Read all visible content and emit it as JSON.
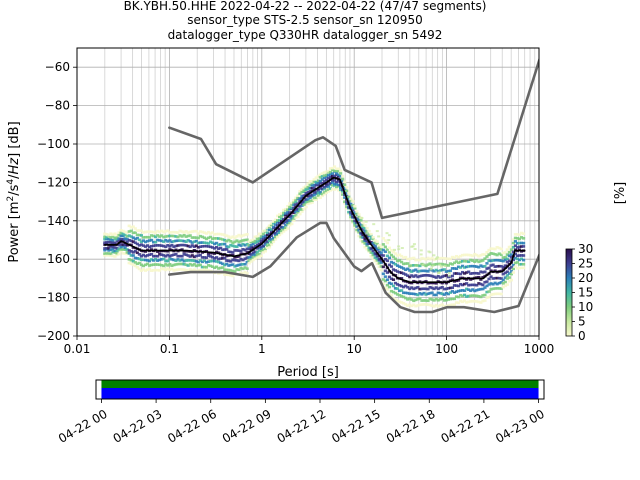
{
  "title_lines": [
    "BK.YBH.50.HHE   2022-04-22 -- 2022-04-22  (47/47 segments)",
    "sensor_type STS-2.5 sensor_sn 120950",
    "datalogger_type Q330HR datalogger_sn 5492"
  ],
  "chart_data": [
    {
      "type": "line",
      "title": "BK.YBH.50.HHE   2022-04-22 -- 2022-04-22  (47/47 segments)",
      "xlabel": "Period [s]",
      "ylabel": "Power [m²/s⁴/Hz] [dB]",
      "xscale": "log",
      "xlim": [
        0.01,
        1000
      ],
      "ylim": [
        -200,
        -50
      ],
      "x_tick_labels": [
        "0.01",
        "0.1",
        "1",
        "10",
        "100",
        "1000"
      ],
      "y_ticks": [
        -200,
        -180,
        -160,
        -140,
        -120,
        -100,
        -80,
        -60
      ],
      "y_tick_labels": [
        "−200",
        "−180",
        "−160",
        "−140",
        "−120",
        "−100",
        "−80",
        "−60"
      ],
      "grid": true,
      "series": [
        {
          "style": "noise-model-high",
          "color": "#666666",
          "x": [
            0.1,
            0.22,
            0.32,
            0.8,
            3.8,
            4.6,
            6.3,
            7.9,
            15.4,
            20,
            354.8,
            10000
          ],
          "y": [
            -91.5,
            -97.4,
            -110.5,
            -120,
            -98,
            -96.5,
            -101,
            -113.5,
            -120,
            -138.5,
            -126,
            -48.5
          ]
        },
        {
          "style": "noise-model-low",
          "color": "#666666",
          "x": [
            0.1,
            0.17,
            0.4,
            0.8,
            1.24,
            2.4,
            4.3,
            5,
            6,
            10,
            12,
            15.6,
            21.9,
            31.6,
            45,
            70,
            101,
            154,
            328,
            600,
            10000
          ],
          "y": [
            -168,
            -166.7,
            -166.7,
            -169.2,
            -163.7,
            -148.6,
            -141.1,
            -141.1,
            -149,
            -163.8,
            -166.2,
            -162.1,
            -177.5,
            -185,
            -187.5,
            -187.5,
            -185,
            -185,
            -187.5,
            -184.4,
            -151.9
          ]
        },
        {
          "style": "mode-line",
          "color": "#000000",
          "x": [
            0.02,
            0.027,
            0.03,
            0.035,
            0.05,
            0.08,
            0.15,
            0.3,
            0.5,
            0.7,
            1,
            2,
            3,
            4,
            5,
            6,
            7,
            9,
            12,
            15,
            20,
            25,
            30,
            40,
            60,
            80,
            100,
            150,
            200,
            250,
            300,
            400,
            500,
            550,
            700
          ],
          "y": [
            -152.5,
            -152.5,
            -150.5,
            -152,
            -155.5,
            -155.5,
            -155.5,
            -156.5,
            -158.5,
            -157,
            -152,
            -137,
            -127,
            -123,
            -120,
            -117.5,
            -118.5,
            -133,
            -145,
            -152,
            -160,
            -167,
            -170,
            -172,
            -172,
            -172,
            -172,
            -170,
            -170,
            -170,
            -166.5,
            -166.5,
            -162,
            -155.5,
            -155.5
          ]
        }
      ],
      "colorbar": {
        "label": "[%]",
        "range": [
          0,
          30
        ],
        "tick_labels": [
          "0",
          "5",
          "10",
          "15",
          "20",
          "25",
          "30"
        ],
        "colors": [
          "#f7f7cc",
          "#c7e9a0",
          "#7fcd7f",
          "#41b6a4",
          "#2c7fb8",
          "#3d3d8f",
          "#2b0f4e"
        ]
      }
    },
    {
      "type": "timeline",
      "xlim_hours": [
        -0.3,
        24.3
      ],
      "x_tick_labels": [
        "04-22 00",
        "04-22 03",
        "04-22 06",
        "04-22 09",
        "04-22 12",
        "04-22 15",
        "04-22 18",
        "04-22 21",
        "04-23 00"
      ],
      "bars": [
        {
          "row": "top",
          "start_hour": 0,
          "end_hour": 24,
          "color": "#008000"
        },
        {
          "row": "bottom",
          "start_hour": 0,
          "end_hour": 24,
          "color": "#0000ff"
        }
      ]
    }
  ]
}
